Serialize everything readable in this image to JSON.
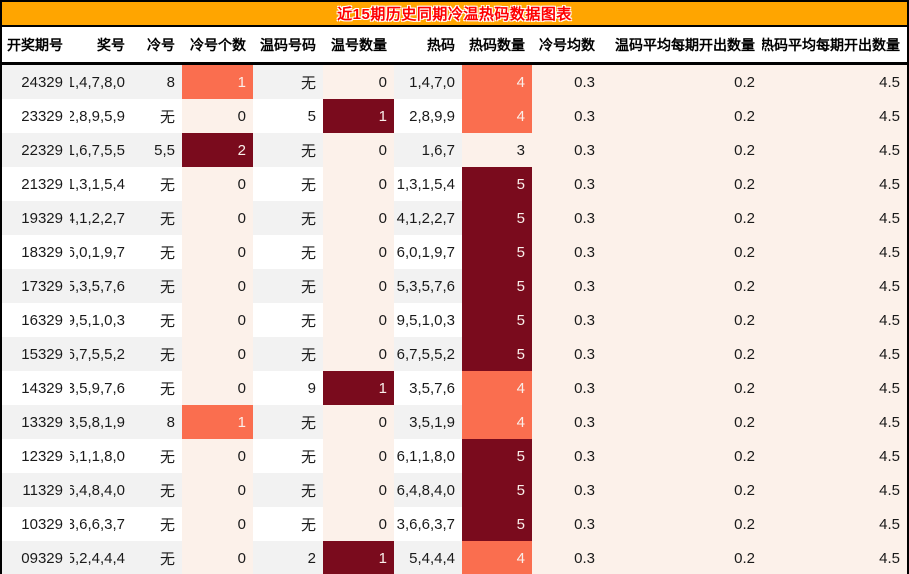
{
  "colors": {
    "title_bar_bg": "#FFA500",
    "title_text": "#FF0000",
    "border": "#000000",
    "row_stripe": "#F2F2F2",
    "heat_low_bg": "#FCF1EA",
    "heat_mid_bg": "#FA6E4F",
    "heat_high_bg": "#7A0B1D",
    "heat_light_text": "#F9EFEA"
  },
  "chart_data": {
    "type": "table",
    "title": "近15期历史同期冷温热码数据图表",
    "columns": [
      {
        "key": "period",
        "label": "开奖期号"
      },
      {
        "key": "numbers",
        "label": "奖号"
      },
      {
        "key": "cold",
        "label": "冷号"
      },
      {
        "key": "cold_count",
        "label": "冷号个数"
      },
      {
        "key": "warm_numbers",
        "label": "温码号码"
      },
      {
        "key": "warm_count",
        "label": "温号数量"
      },
      {
        "key": "hot",
        "label": "热码"
      },
      {
        "key": "hot_count",
        "label": "热码数量"
      },
      {
        "key": "cold_avg",
        "label": "冷号均数"
      },
      {
        "key": "warm_avg",
        "label": "温码平均每期开出数量"
      },
      {
        "key": "hot_avg",
        "label": "热码平均每期开出数量"
      }
    ],
    "rows": [
      {
        "cells": [
          {
            "v": "24329"
          },
          {
            "v": "1,4,7,8,0"
          },
          {
            "v": "8"
          },
          {
            "v": "1",
            "heat": "mid"
          },
          {
            "v": "无"
          },
          {
            "v": "0",
            "heat": "low"
          },
          {
            "v": "1,4,7,0"
          },
          {
            "v": "4",
            "heat": "mid"
          },
          {
            "v": "0.3",
            "heat": "low"
          },
          {
            "v": "0.2",
            "heat": "low"
          },
          {
            "v": "4.5",
            "heat": "low"
          }
        ]
      },
      {
        "cells": [
          {
            "v": "23329"
          },
          {
            "v": "2,8,9,5,9"
          },
          {
            "v": "无"
          },
          {
            "v": "0",
            "heat": "low"
          },
          {
            "v": "5"
          },
          {
            "v": "1",
            "heat": "high"
          },
          {
            "v": "2,8,9,9"
          },
          {
            "v": "4",
            "heat": "mid"
          },
          {
            "v": "0.3",
            "heat": "low"
          },
          {
            "v": "0.2",
            "heat": "low"
          },
          {
            "v": "4.5",
            "heat": "low"
          }
        ]
      },
      {
        "cells": [
          {
            "v": "22329"
          },
          {
            "v": "1,6,7,5,5"
          },
          {
            "v": "5,5"
          },
          {
            "v": "2",
            "heat": "high"
          },
          {
            "v": "无"
          },
          {
            "v": "0",
            "heat": "low"
          },
          {
            "v": "1,6,7"
          },
          {
            "v": "3",
            "heat": "low"
          },
          {
            "v": "0.3",
            "heat": "low"
          },
          {
            "v": "0.2",
            "heat": "low"
          },
          {
            "v": "4.5",
            "heat": "low"
          }
        ]
      },
      {
        "cells": [
          {
            "v": "21329"
          },
          {
            "v": "1,3,1,5,4"
          },
          {
            "v": "无"
          },
          {
            "v": "0",
            "heat": "low"
          },
          {
            "v": "无"
          },
          {
            "v": "0",
            "heat": "low"
          },
          {
            "v": "1,3,1,5,4"
          },
          {
            "v": "5",
            "heat": "high"
          },
          {
            "v": "0.3",
            "heat": "low"
          },
          {
            "v": "0.2",
            "heat": "low"
          },
          {
            "v": "4.5",
            "heat": "low"
          }
        ]
      },
      {
        "cells": [
          {
            "v": "19329"
          },
          {
            "v": "4,1,2,2,7"
          },
          {
            "v": "无"
          },
          {
            "v": "0",
            "heat": "low"
          },
          {
            "v": "无"
          },
          {
            "v": "0",
            "heat": "low"
          },
          {
            "v": "4,1,2,2,7"
          },
          {
            "v": "5",
            "heat": "high"
          },
          {
            "v": "0.3",
            "heat": "low"
          },
          {
            "v": "0.2",
            "heat": "low"
          },
          {
            "v": "4.5",
            "heat": "low"
          }
        ]
      },
      {
        "cells": [
          {
            "v": "18329"
          },
          {
            "v": "6,0,1,9,7"
          },
          {
            "v": "无"
          },
          {
            "v": "0",
            "heat": "low"
          },
          {
            "v": "无"
          },
          {
            "v": "0",
            "heat": "low"
          },
          {
            "v": "6,0,1,9,7"
          },
          {
            "v": "5",
            "heat": "high"
          },
          {
            "v": "0.3",
            "heat": "low"
          },
          {
            "v": "0.2",
            "heat": "low"
          },
          {
            "v": "4.5",
            "heat": "low"
          }
        ]
      },
      {
        "cells": [
          {
            "v": "17329"
          },
          {
            "v": "5,3,5,7,6"
          },
          {
            "v": "无"
          },
          {
            "v": "0",
            "heat": "low"
          },
          {
            "v": "无"
          },
          {
            "v": "0",
            "heat": "low"
          },
          {
            "v": "5,3,5,7,6"
          },
          {
            "v": "5",
            "heat": "high"
          },
          {
            "v": "0.3",
            "heat": "low"
          },
          {
            "v": "0.2",
            "heat": "low"
          },
          {
            "v": "4.5",
            "heat": "low"
          }
        ]
      },
      {
        "cells": [
          {
            "v": "16329"
          },
          {
            "v": "9,5,1,0,3"
          },
          {
            "v": "无"
          },
          {
            "v": "0",
            "heat": "low"
          },
          {
            "v": "无"
          },
          {
            "v": "0",
            "heat": "low"
          },
          {
            "v": "9,5,1,0,3"
          },
          {
            "v": "5",
            "heat": "high"
          },
          {
            "v": "0.3",
            "heat": "low"
          },
          {
            "v": "0.2",
            "heat": "low"
          },
          {
            "v": "4.5",
            "heat": "low"
          }
        ]
      },
      {
        "cells": [
          {
            "v": "15329"
          },
          {
            "v": "6,7,5,5,2"
          },
          {
            "v": "无"
          },
          {
            "v": "0",
            "heat": "low"
          },
          {
            "v": "无"
          },
          {
            "v": "0",
            "heat": "low"
          },
          {
            "v": "6,7,5,5,2"
          },
          {
            "v": "5",
            "heat": "high"
          },
          {
            "v": "0.3",
            "heat": "low"
          },
          {
            "v": "0.2",
            "heat": "low"
          },
          {
            "v": "4.5",
            "heat": "low"
          }
        ]
      },
      {
        "cells": [
          {
            "v": "14329"
          },
          {
            "v": "3,5,9,7,6"
          },
          {
            "v": "无"
          },
          {
            "v": "0",
            "heat": "low"
          },
          {
            "v": "9"
          },
          {
            "v": "1",
            "heat": "high"
          },
          {
            "v": "3,5,7,6"
          },
          {
            "v": "4",
            "heat": "mid"
          },
          {
            "v": "0.3",
            "heat": "low"
          },
          {
            "v": "0.2",
            "heat": "low"
          },
          {
            "v": "4.5",
            "heat": "low"
          }
        ]
      },
      {
        "cells": [
          {
            "v": "13329"
          },
          {
            "v": "3,5,8,1,9"
          },
          {
            "v": "8"
          },
          {
            "v": "1",
            "heat": "mid"
          },
          {
            "v": "无"
          },
          {
            "v": "0",
            "heat": "low"
          },
          {
            "v": "3,5,1,9"
          },
          {
            "v": "4",
            "heat": "mid"
          },
          {
            "v": "0.3",
            "heat": "low"
          },
          {
            "v": "0.2",
            "heat": "low"
          },
          {
            "v": "4.5",
            "heat": "low"
          }
        ]
      },
      {
        "cells": [
          {
            "v": "12329"
          },
          {
            "v": "6,1,1,8,0"
          },
          {
            "v": "无"
          },
          {
            "v": "0",
            "heat": "low"
          },
          {
            "v": "无"
          },
          {
            "v": "0",
            "heat": "low"
          },
          {
            "v": "6,1,1,8,0"
          },
          {
            "v": "5",
            "heat": "high"
          },
          {
            "v": "0.3",
            "heat": "low"
          },
          {
            "v": "0.2",
            "heat": "low"
          },
          {
            "v": "4.5",
            "heat": "low"
          }
        ]
      },
      {
        "cells": [
          {
            "v": "11329"
          },
          {
            "v": "6,4,8,4,0"
          },
          {
            "v": "无"
          },
          {
            "v": "0",
            "heat": "low"
          },
          {
            "v": "无"
          },
          {
            "v": "0",
            "heat": "low"
          },
          {
            "v": "6,4,8,4,0"
          },
          {
            "v": "5",
            "heat": "high"
          },
          {
            "v": "0.3",
            "heat": "low"
          },
          {
            "v": "0.2",
            "heat": "low"
          },
          {
            "v": "4.5",
            "heat": "low"
          }
        ]
      },
      {
        "cells": [
          {
            "v": "10329"
          },
          {
            "v": "3,6,6,3,7"
          },
          {
            "v": "无"
          },
          {
            "v": "0",
            "heat": "low"
          },
          {
            "v": "无"
          },
          {
            "v": "0",
            "heat": "low"
          },
          {
            "v": "3,6,6,3,7"
          },
          {
            "v": "5",
            "heat": "high"
          },
          {
            "v": "0.3",
            "heat": "low"
          },
          {
            "v": "0.2",
            "heat": "low"
          },
          {
            "v": "4.5",
            "heat": "low"
          }
        ]
      },
      {
        "cells": [
          {
            "v": "09329"
          },
          {
            "v": "5,2,4,4,4"
          },
          {
            "v": "无"
          },
          {
            "v": "0",
            "heat": "low"
          },
          {
            "v": "2"
          },
          {
            "v": "1",
            "heat": "high"
          },
          {
            "v": "5,4,4,4"
          },
          {
            "v": "4",
            "heat": "mid"
          },
          {
            "v": "0.3",
            "heat": "low"
          },
          {
            "v": "0.2",
            "heat": "low"
          },
          {
            "v": "4.5",
            "heat": "low"
          }
        ]
      }
    ]
  }
}
